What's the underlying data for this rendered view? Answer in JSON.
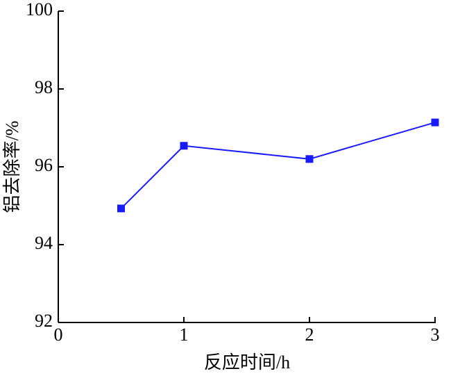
{
  "chart_data": {
    "type": "line",
    "x_label": "反应时间/h",
    "y_label": "铝去除率/%",
    "x": [
      0.5,
      1,
      2,
      3
    ],
    "values": [
      94.93,
      96.54,
      96.2,
      97.14
    ],
    "color": "#1a1aff",
    "xlim": [
      0,
      3
    ],
    "xticks": [
      0,
      1,
      2,
      3
    ],
    "ylim": [
      92,
      100
    ],
    "yticks": [
      92,
      94,
      96,
      98,
      100
    ]
  }
}
